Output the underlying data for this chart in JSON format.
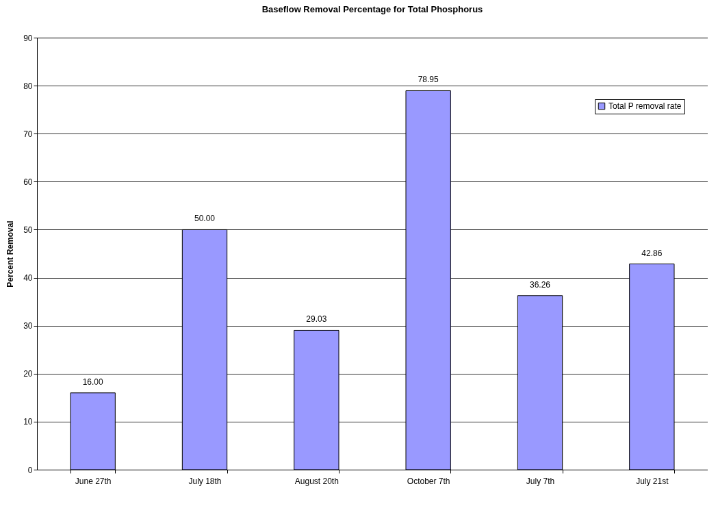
{
  "chart_data": {
    "type": "bar",
    "title": "Baseflow Removal Percentage for Total Phosphorus",
    "ylabel": "Percent Removal",
    "categories": [
      "June 27th",
      "July 18th",
      "August 20th",
      "October 7th",
      "July 7th",
      "July 21st"
    ],
    "series": [
      {
        "name": "Total P removal rate",
        "color": "#9999ff",
        "values": [
          16.0,
          50.0,
          29.03,
          78.95,
          36.26,
          42.86
        ],
        "value_labels": [
          "16.00",
          "50.00",
          "29.03",
          "78.95",
          "36.26",
          "42.86"
        ]
      }
    ],
    "ylim": [
      0,
      90
    ],
    "yticks": [
      0,
      10,
      20,
      30,
      40,
      50,
      60,
      70,
      80,
      90
    ],
    "grid": "y",
    "legend": "top right"
  }
}
